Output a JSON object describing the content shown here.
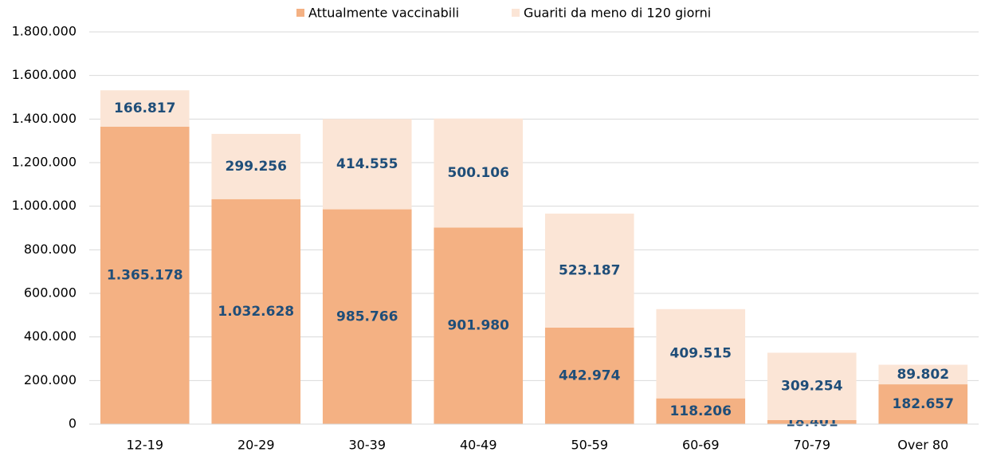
{
  "chart_data": {
    "type": "stacked_bar",
    "categories": [
      "12-19",
      "20-29",
      "30-39",
      "40-49",
      "50-59",
      "60-69",
      "70-79",
      "Over 80"
    ],
    "series": [
      {
        "name": "Attualmente vaccinabili",
        "color": "#f4b183",
        "values": [
          1365178,
          1032628,
          985766,
          901980,
          442974,
          118206,
          18401,
          182657
        ],
        "value_labels": [
          "1.365.178",
          "1.032.628",
          "985.766",
          "901.980",
          "442.974",
          "118.206",
          "18.401",
          "182.657"
        ]
      },
      {
        "name": "Guariti da meno di 120 giorni",
        "color": "#fbe5d6",
        "values": [
          166817,
          299256,
          414555,
          500106,
          523187,
          409515,
          309254,
          89802
        ],
        "value_labels": [
          "166.817",
          "299.256",
          "414.555",
          "500.106",
          "523.187",
          "409.515",
          "309.254",
          "89.802"
        ]
      }
    ],
    "ylim": [
      0,
      1800000
    ],
    "yticks": [
      0,
      {
        "value": 200000,
        "label": "200.000"
      },
      {
        "value": 400000,
        "label": "400.000"
      },
      {
        "value": 600000,
        "label": "600.000"
      },
      {
        "value": 800000,
        "label": "800.000"
      },
      {
        "value": 1000000,
        "label": "1.000.000"
      },
      {
        "value": 1200000,
        "label": "1.200.000"
      },
      {
        "value": 1400000,
        "label": "1.400.000"
      },
      {
        "value": 1600000,
        "label": "1.600.000"
      },
      {
        "value": 1800000,
        "label": "1.800.000"
      }
    ],
    "grid": true,
    "legend": "top",
    "label_color": "#1f4e79"
  }
}
